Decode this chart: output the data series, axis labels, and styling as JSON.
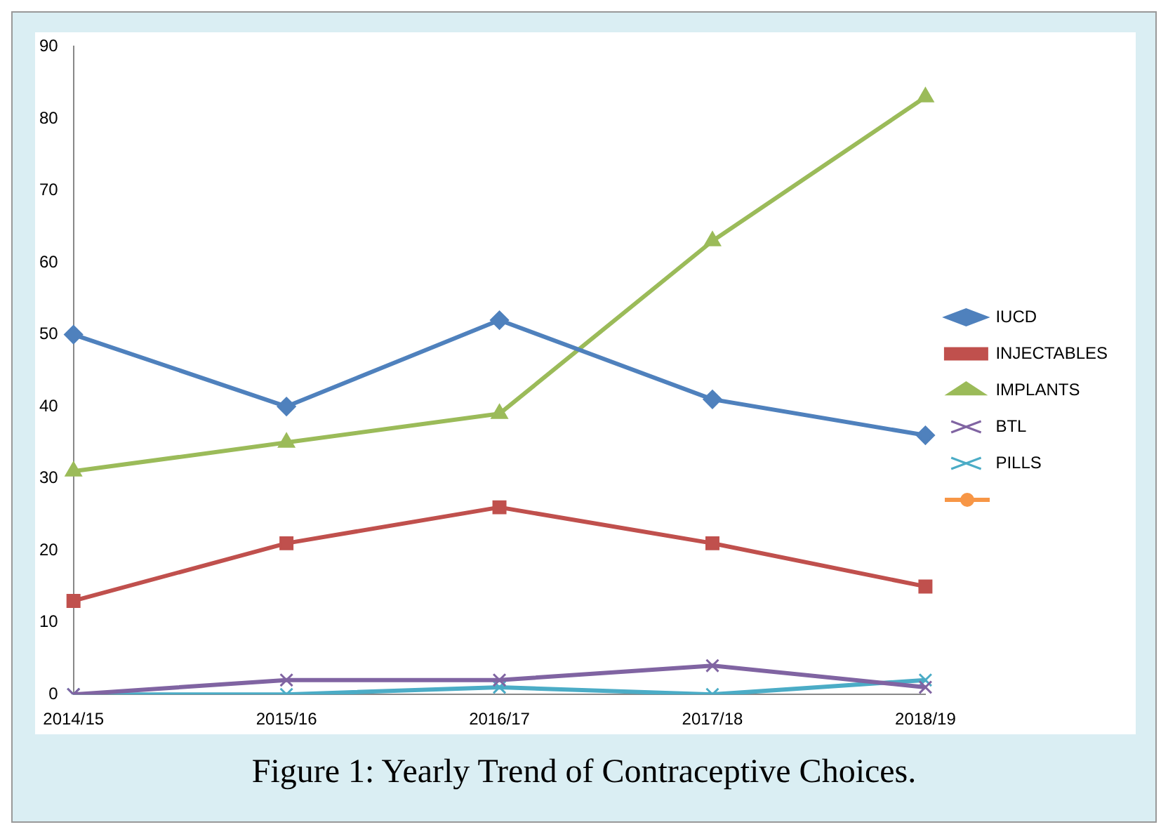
{
  "chart_data": {
    "type": "line",
    "title": "Figure 1: Yearly Trend of Contraceptive Choices.",
    "categories": [
      "2014/15",
      "2015/16",
      "2016/17",
      "2017/18",
      "2018/19"
    ],
    "series": [
      {
        "name": "IUCD",
        "color": "#4f81bd",
        "marker": "diamond",
        "values": [
          50,
          40,
          52,
          41,
          36
        ]
      },
      {
        "name": "INJECTABLES",
        "color": "#c0504d",
        "marker": "square",
        "values": [
          13,
          21,
          26,
          21,
          15
        ]
      },
      {
        "name": "IMPLANTS",
        "color": "#9bbb59",
        "marker": "triangle",
        "values": [
          31,
          35,
          39,
          63,
          83
        ]
      },
      {
        "name": "BTL",
        "color": "#8064a2",
        "marker": "cross",
        "values": [
          0,
          2,
          2,
          4,
          1
        ]
      },
      {
        "name": "PILLS",
        "color": "#4bacc6",
        "marker": "cross",
        "values": [
          0,
          0,
          1,
          0,
          2
        ]
      }
    ],
    "ylim": [
      0,
      90
    ],
    "yticks": [
      0,
      10,
      20,
      30,
      40,
      50,
      60,
      70,
      80,
      90
    ],
    "grid": false,
    "legend": "right"
  }
}
